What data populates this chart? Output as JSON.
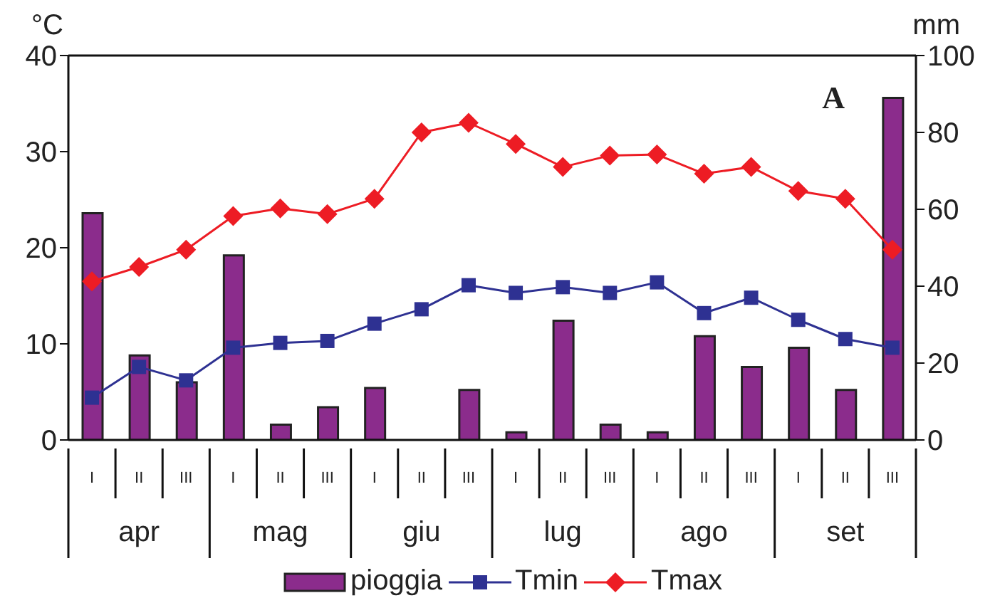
{
  "chart_data": {
    "type": "bar",
    "title": "A",
    "ylabel": "°C",
    "y2label": "mm",
    "categories": [
      "I",
      "II",
      "III",
      "I",
      "II",
      "III",
      "I",
      "II",
      "III",
      "I",
      "II",
      "III",
      "I",
      "II",
      "III",
      "I",
      "II",
      "III"
    ],
    "annotations": [
      "apr",
      "mag",
      "giu",
      "lug",
      "ago",
      "set"
    ],
    "series": [
      {
        "name": "pioggia",
        "axis": "y2",
        "color": "#8b2c8c",
        "values": [
          59,
          22,
          15,
          48,
          4,
          8.5,
          13.5,
          0,
          13,
          2,
          31,
          4,
          2,
          27,
          19,
          24,
          13,
          89
        ]
      },
      {
        "name": "Tmin",
        "type": "line",
        "color": "#2e3192",
        "marker": "square",
        "values": [
          4.4,
          7.6,
          6.2,
          9.6,
          10.1,
          10.3,
          12.1,
          13.6,
          16.1,
          15.3,
          15.9,
          15.3,
          16.4,
          13.2,
          14.8,
          12.5,
          10.5,
          9.6
        ]
      },
      {
        "name": "Tmax",
        "type": "line",
        "color": "#ed1c24",
        "marker": "diamond",
        "values": [
          16.5,
          18.0,
          19.8,
          23.3,
          24.1,
          23.5,
          25.1,
          32.0,
          33.0,
          30.8,
          28.4,
          29.6,
          29.7,
          27.7,
          28.4,
          25.9,
          25.1,
          19.8
        ]
      }
    ],
    "ylim": [
      0,
      40
    ],
    "yticks": [
      0,
      10,
      20,
      30,
      40
    ],
    "y2lim": [
      0,
      100
    ],
    "y2ticks": [
      0,
      20,
      40,
      60,
      80,
      100
    ],
    "legend": "bottom",
    "line_style": "solid"
  }
}
